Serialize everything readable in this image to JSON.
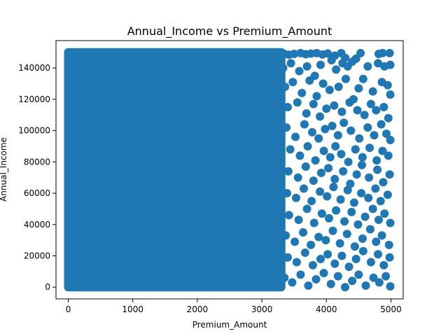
{
  "chart_data": {
    "type": "scatter",
    "title": "Annual_Income vs Premium_Amount",
    "xlabel": "Premium_Amount",
    "ylabel": "Annual_Income",
    "xlim": [
      -190,
      5190
    ],
    "ylim": [
      -7500,
      157500
    ],
    "xticks": [
      0,
      1000,
      2000,
      3000,
      4000,
      5000
    ],
    "yticks": [
      0,
      20000,
      40000,
      60000,
      80000,
      100000,
      120000,
      140000
    ],
    "xtick_labels": [
      "0",
      "1000",
      "2000",
      "3000",
      "4000",
      "5000"
    ],
    "ytick_labels": [
      "0",
      "20000",
      "40000",
      "60000",
      "80000",
      "100000",
      "120000",
      "140000"
    ],
    "grid": false,
    "legend": "none",
    "color": "#1f77b4",
    "dense_region": {
      "x_range": [
        0,
        3300
      ],
      "y_range": [
        0,
        150000
      ]
    },
    "series": [
      {
        "points": [
          [
            3350,
            149000
          ],
          [
            3420,
            148500
          ],
          [
            3500,
            149000
          ],
          [
            3600,
            149500
          ],
          [
            3680,
            148800
          ],
          [
            3760,
            149200
          ],
          [
            3850,
            149500
          ],
          [
            3940,
            148600
          ],
          [
            4020,
            149300
          ],
          [
            4130,
            147900
          ],
          [
            4230,
            149500
          ],
          [
            4290,
            146500
          ],
          [
            4530,
            149500
          ],
          [
            4810,
            149000
          ],
          [
            4870,
            149500
          ],
          [
            4980,
            149500
          ],
          [
            3330,
            140000
          ],
          [
            3450,
            143000
          ],
          [
            3580,
            138000
          ],
          [
            3700,
            141000
          ],
          [
            3820,
            135000
          ],
          [
            3910,
            142000
          ],
          [
            4080,
            145000
          ],
          [
            4150,
            139000
          ],
          [
            4250,
            143000
          ],
          [
            4330,
            141000
          ],
          [
            4400,
            144000
          ],
          [
            4460,
            146000
          ],
          [
            4640,
            141000
          ],
          [
            4800,
            143000
          ],
          [
            4900,
            141000
          ],
          [
            4990,
            142000
          ],
          [
            3360,
            128000
          ],
          [
            3480,
            131000
          ],
          [
            3620,
            124000
          ],
          [
            3740,
            132000
          ],
          [
            3850,
            122000
          ],
          [
            3950,
            130000
          ],
          [
            4050,
            126000
          ],
          [
            4190,
            128000
          ],
          [
            4300,
            133000
          ],
          [
            4420,
            120000
          ],
          [
            4500,
            127000
          ],
          [
            4570,
            133000
          ],
          [
            4720,
            125000
          ],
          [
            4860,
            131000
          ],
          [
            4950,
            129000
          ],
          [
            4990,
            123000
          ],
          [
            3400,
            115000
          ],
          [
            3550,
            118000
          ],
          [
            3690,
            111000
          ],
          [
            3800,
            117000
          ],
          [
            3900,
            109000
          ],
          [
            4000,
            114000
          ],
          [
            4120,
            116000
          ],
          [
            4240,
            112000
          ],
          [
            4360,
            118000
          ],
          [
            4480,
            113000
          ],
          [
            4590,
            110000
          ],
          [
            4690,
            117000
          ],
          [
            4770,
            113000
          ],
          [
            4890,
            115000
          ],
          [
            4960,
            108000
          ],
          [
            3380,
            102000
          ],
          [
            3520,
            96000
          ],
          [
            3660,
            104000
          ],
          [
            3780,
            99000
          ],
          [
            3880,
            95000
          ],
          [
            3980,
            101000
          ],
          [
            4090,
            103000
          ],
          [
            4180,
            97000
          ],
          [
            4270,
            105000
          ],
          [
            4380,
            100000
          ],
          [
            4510,
            95000
          ],
          [
            4640,
            102000
          ],
          [
            4740,
            97000
          ],
          [
            4850,
            104000
          ],
          [
            4930,
            98000
          ],
          [
            4990,
            94000
          ],
          [
            3440,
            88000
          ],
          [
            3590,
            84000
          ],
          [
            3710,
            90000
          ],
          [
            3830,
            81000
          ],
          [
            3960,
            87000
          ],
          [
            4060,
            83000
          ],
          [
            4140,
            90000
          ],
          [
            4230,
            85000
          ],
          [
            4340,
            80000
          ],
          [
            4450,
            88000
          ],
          [
            4560,
            83000
          ],
          [
            4670,
            89000
          ],
          [
            4780,
            81000
          ],
          [
            4870,
            87000
          ],
          [
            4960,
            84000
          ],
          [
            3410,
            74000
          ],
          [
            3560,
            70000
          ],
          [
            3680,
            77000
          ],
          [
            3800,
            68000
          ],
          [
            3920,
            73000
          ],
          [
            4030,
            76000
          ],
          [
            4130,
            69000
          ],
          [
            4260,
            74000
          ],
          [
            4370,
            66000
          ],
          [
            4470,
            72000
          ],
          [
            4550,
            78000
          ],
          [
            4660,
            70000
          ],
          [
            4790,
            75000
          ],
          [
            4880,
            67000
          ],
          [
            4980,
            72000
          ],
          [
            3390,
            60000
          ],
          [
            3530,
            57000
          ],
          [
            3650,
            63000
          ],
          [
            3770,
            55000
          ],
          [
            3900,
            61000
          ],
          [
            4010,
            58000
          ],
          [
            4110,
            64000
          ],
          [
            4220,
            56000
          ],
          [
            4330,
            62000
          ],
          [
            4430,
            54000
          ],
          [
            4540,
            60000
          ],
          [
            4650,
            57000
          ],
          [
            4760,
            63000
          ],
          [
            4840,
            55000
          ],
          [
            4950,
            59000
          ],
          [
            3420,
            46000
          ],
          [
            3570,
            43000
          ],
          [
            3700,
            50000
          ],
          [
            3810,
            41000
          ],
          [
            3930,
            47000
          ],
          [
            4040,
            44000
          ],
          [
            4150,
            49000
          ],
          [
            4280,
            42000
          ],
          [
            4390,
            48000
          ],
          [
            4490,
            40000
          ],
          [
            4600,
            45000
          ],
          [
            4720,
            50000
          ],
          [
            4810,
            43000
          ],
          [
            4900,
            47000
          ],
          [
            4990,
            41000
          ],
          [
            3370,
            33000
          ],
          [
            3510,
            29000
          ],
          [
            3640,
            35000
          ],
          [
            3760,
            27000
          ],
          [
            3880,
            32000
          ],
          [
            3990,
            30000
          ],
          [
            4100,
            36000
          ],
          [
            4210,
            28000
          ],
          [
            4320,
            34000
          ],
          [
            4440,
            26000
          ],
          [
            4560,
            31000
          ],
          [
            4680,
            37000
          ],
          [
            4770,
            29000
          ],
          [
            4860,
            33000
          ],
          [
            4970,
            27000
          ],
          [
            3400,
            19000
          ],
          [
            3540,
            16000
          ],
          [
            3670,
            22000
          ],
          [
            3790,
            14000
          ],
          [
            3910,
            18000
          ],
          [
            4020,
            21000
          ],
          [
            4130,
            15000
          ],
          [
            4240,
            20000
          ],
          [
            4350,
            13000
          ],
          [
            4460,
            18000
          ],
          [
            4570,
            23000
          ],
          [
            4690,
            16000
          ],
          [
            4800,
            21000
          ],
          [
            4890,
            14000
          ],
          [
            4980,
            19000
          ],
          [
            3350,
            6000
          ],
          [
            3470,
            3000
          ],
          [
            3600,
            8000
          ],
          [
            3720,
            1000
          ],
          [
            3840,
            5000
          ],
          [
            3960,
            9000
          ],
          [
            4070,
            2000
          ],
          [
            4180,
            7000
          ],
          [
            4290,
            0
          ],
          [
            4400,
            4000
          ],
          [
            4500,
            8000
          ],
          [
            4610,
            1000
          ],
          [
            4730,
            6000
          ],
          [
            4820,
            3000
          ],
          [
            4920,
            7000
          ],
          [
            4990,
            500
          ]
        ]
      }
    ]
  }
}
